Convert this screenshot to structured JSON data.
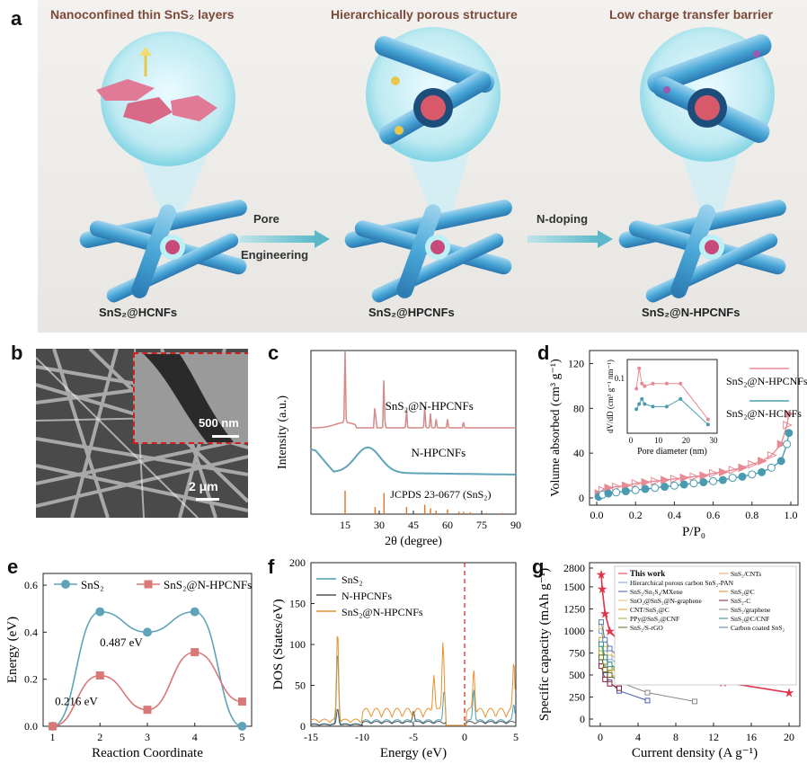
{
  "panel_labels": {
    "a": "a",
    "b": "b",
    "c": "c",
    "d": "d",
    "e": "e",
    "f": "f",
    "g": "g"
  },
  "panel_a": {
    "headings": [
      "Nanoconfined thin SnS₂ layers",
      "Hierarchically porous structure",
      "Low charge transfer barrier"
    ],
    "labels": [
      "SnS₂@HCNFs",
      "SnS₂@HPCNFs",
      "SnS₂@N-HPCNFs"
    ],
    "arrow1": [
      "Pore",
      "Engineering"
    ],
    "arrow2": "N-doping"
  },
  "panel_b": {
    "inset_scale": "500 nm",
    "main_scale": "2 μm"
  },
  "chart_data": [
    {
      "id": "c",
      "type": "line",
      "xlabel": "2θ (degree)",
      "ylabel": "Intensity (a.u.)",
      "xlim": [
        0,
        90
      ],
      "xticks": [
        15,
        30,
        45,
        60,
        75,
        90
      ],
      "series": [
        {
          "name": "SnS₂@N-HPCNFs",
          "color": "#d48a8a",
          "peaks": [
            [
              15,
              1.0
            ],
            [
              28.2,
              0.45
            ],
            [
              32.1,
              0.75
            ],
            [
              42,
              0.25
            ],
            [
              50,
              0.3
            ],
            [
              52.5,
              0.2
            ],
            [
              55,
              0.12
            ],
            [
              60,
              0.12
            ],
            [
              67,
              0.08
            ]
          ]
        },
        {
          "name": "N-HPCNFs",
          "color": "#5fa4b8",
          "hump": [
            25,
            1.0
          ]
        },
        {
          "name": "JCPDS 23-0677 (SnS₂)",
          "color": "#e07a2a",
          "sticks": [
            [
              15,
              1.0
            ],
            [
              28.2,
              0.3
            ],
            [
              32.1,
              0.9
            ],
            [
              42,
              0.3
            ],
            [
              50,
              0.4
            ],
            [
              52.5,
              0.25
            ],
            [
              55,
              0.15
            ],
            [
              60,
              0.2
            ],
            [
              65,
              0.1
            ],
            [
              67,
              0.1
            ],
            [
              70,
              0.08
            ],
            [
              77,
              0.05
            ],
            [
              84,
              0.05
            ]
          ]
        }
      ]
    },
    {
      "id": "d",
      "type": "scatter",
      "xlabel": "P/P₀",
      "ylabel": "Volume absorbed (cm³ g⁻¹)",
      "xlim": [
        0,
        1.0
      ],
      "ylim": [
        0,
        130
      ],
      "xticks": [
        0.0,
        0.2,
        0.4,
        0.6,
        0.8,
        1.0
      ],
      "yticks": [
        0,
        40,
        80,
        120
      ],
      "series": [
        {
          "name": "SnS₂@N-HPCNFs",
          "color": "#e88a94",
          "x": [
            0.01,
            0.03,
            0.06,
            0.1,
            0.15,
            0.2,
            0.25,
            0.3,
            0.35,
            0.4,
            0.45,
            0.5,
            0.55,
            0.6,
            0.65,
            0.7,
            0.75,
            0.8,
            0.85,
            0.9,
            0.95,
            0.98,
            0.99
          ],
          "y": [
            4,
            7,
            9,
            10,
            11,
            13,
            14,
            15,
            16,
            17,
            18,
            19,
            20,
            22,
            23,
            25,
            27,
            30,
            33,
            38,
            48,
            65,
            75
          ]
        },
        {
          "name": "SnS₂@N-HCNFs",
          "color": "#4a9bb0",
          "x": [
            0.01,
            0.03,
            0.06,
            0.1,
            0.15,
            0.2,
            0.25,
            0.3,
            0.35,
            0.4,
            0.45,
            0.5,
            0.55,
            0.6,
            0.65,
            0.7,
            0.75,
            0.8,
            0.85,
            0.9,
            0.95,
            0.98,
            0.99
          ],
          "y": [
            1,
            3,
            4,
            5,
            6,
            7,
            8,
            9,
            10,
            11,
            12,
            13,
            14,
            15,
            16,
            18,
            19,
            21,
            23,
            27,
            33,
            48,
            58
          ]
        }
      ],
      "inset": {
        "xlabel": "Pore diameter (nm)",
        "ylabel": "dV/dD (cm³ g⁻¹ nm⁻¹)",
        "xticks": [
          0,
          10,
          20,
          30
        ],
        "ytick": "0.1",
        "series": [
          {
            "x": [
              2,
              3,
              4,
              5,
              8,
              13,
              18,
              28
            ],
            "y": [
              0.08,
              0.12,
              0.09,
              0.085,
              0.09,
              0.09,
              0.09,
              0.02
            ]
          },
          {
            "x": [
              2,
              3,
              4,
              5,
              8,
              13,
              18,
              28
            ],
            "y": [
              0.04,
              0.05,
              0.06,
              0.05,
              0.045,
              0.045,
              0.06,
              0.01
            ]
          }
        ]
      }
    },
    {
      "id": "e",
      "type": "line",
      "xlabel": "Reaction Coordinate",
      "ylabel": "Energy (eV)",
      "xlim": [
        0.8,
        5.2
      ],
      "ylim": [
        0,
        0.65
      ],
      "xticks": [
        1,
        2,
        3,
        4,
        5
      ],
      "yticks": [
        0.0,
        0.2,
        0.4,
        0.6
      ],
      "annotations": [
        "0.487 eV",
        "0.216 eV"
      ],
      "series": [
        {
          "name": "SnS₂",
          "color": "#5fa4b8",
          "x": [
            1,
            2,
            3,
            4,
            5
          ],
          "y": [
            0,
            0.487,
            0.4,
            0.487,
            0
          ]
        },
        {
          "name": "SnS₂@N-HPCNFs",
          "color": "#d97878",
          "x": [
            1,
            2,
            3,
            4,
            5
          ],
          "y": [
            0,
            0.216,
            0.07,
            0.315,
            0.105
          ]
        }
      ]
    },
    {
      "id": "f",
      "type": "line",
      "xlabel": "Energy (eV)",
      "ylabel": "DOS (States/eV)",
      "xlim": [
        -15,
        5
      ],
      "ylim": [
        0,
        200
      ],
      "xticks": [
        -15,
        -10,
        -5,
        0,
        5
      ],
      "yticks": [
        0,
        50,
        100,
        150,
        200
      ],
      "series": [
        {
          "name": "SnS₂",
          "color": "#4a9bb0"
        },
        {
          "name": "N-HPCNFs",
          "color": "#555555"
        },
        {
          "name": "SnS₂@N-HPCNFs",
          "color": "#e8912e"
        }
      ]
    },
    {
      "id": "g",
      "type": "scatter",
      "xlabel": "Current density (A g⁻¹)",
      "ylabel": "Specific capacity (mAh g⁻¹)",
      "xticks": [
        0,
        4,
        8,
        12,
        16,
        20
      ],
      "yticks": [
        0,
        250,
        500,
        750,
        1000,
        1250,
        1500,
        2800
      ],
      "series": [
        {
          "name": "This work",
          "color": "#e0344a",
          "x": [
            0.1,
            0.2,
            0.5,
            1,
            2,
            3,
            4,
            6.5,
            13,
            20
          ],
          "y": [
            2200,
            1480,
            1200,
            1000,
            880,
            820,
            740,
            600,
            420,
            300
          ]
        },
        {
          "name": "SnS₂/CNTs",
          "color": "#f0a060",
          "x": [
            0.1,
            0.5,
            1,
            2
          ],
          "y": [
            800,
            600,
            520,
            450
          ]
        },
        {
          "name": "Hierarchical porous carbon SnS₂-PAN",
          "color": "#7aa0d8",
          "x": [
            0.1,
            0.5,
            1,
            2
          ],
          "y": [
            1000,
            800,
            700,
            600
          ]
        },
        {
          "name": "SnS₂/Sn₃S₄/MXene",
          "color": "#4a58b0",
          "x": [
            0.1,
            0.5,
            1,
            2,
            5
          ],
          "y": [
            650,
            500,
            420,
            320,
            210
          ]
        },
        {
          "name": "SnS₂@C",
          "color": "#e0862a",
          "x": [
            0.1,
            1,
            2,
            5,
            10
          ],
          "y": [
            750,
            600,
            530,
            480,
            420
          ]
        },
        {
          "name": "SnO₂@SnS₂@N-graphene",
          "color": "#d8c060",
          "x": [
            0.1,
            0.5,
            1,
            2
          ],
          "y": [
            1050,
            850,
            750,
            650
          ]
        },
        {
          "name": "SnS₂-C",
          "color": "#8a2030",
          "x": [
            0.1,
            0.5,
            1,
            2
          ],
          "y": [
            600,
            450,
            400,
            350
          ]
        },
        {
          "name": "CNT/SnS₂@C",
          "color": "#e0a030",
          "x": [
            0.1,
            0.5,
            1,
            2,
            5
          ],
          "y": [
            900,
            700,
            620,
            550,
            460
          ]
        },
        {
          "name": "SnS₂/graphene",
          "color": "#888888",
          "x": [
            0.1,
            1,
            2,
            5,
            10
          ],
          "y": [
            700,
            500,
            420,
            300,
            200
          ]
        },
        {
          "name": "PPy@SnS₂@CNF",
          "color": "#8ab840",
          "x": [
            0.1,
            0.5,
            1,
            2
          ],
          "y": [
            800,
            650,
            580,
            520
          ]
        },
        {
          "name": "SnS₂@C/CNF",
          "color": "#2a8a90",
          "x": [
            0.1,
            0.5,
            1,
            2,
            5
          ],
          "y": [
            850,
            700,
            620,
            560,
            500
          ]
        },
        {
          "name": "SnS₂/S-rGO",
          "color": "#6a6a20",
          "x": [
            0.1,
            0.5,
            1,
            2
          ],
          "y": [
            700,
            560,
            500,
            430
          ]
        },
        {
          "name": "Carbon coated SnS₂",
          "color": "#5a78b0",
          "x": [
            0.1,
            0.5,
            1,
            2
          ],
          "y": [
            1100,
            900,
            800,
            700
          ]
        }
      ]
    }
  ]
}
